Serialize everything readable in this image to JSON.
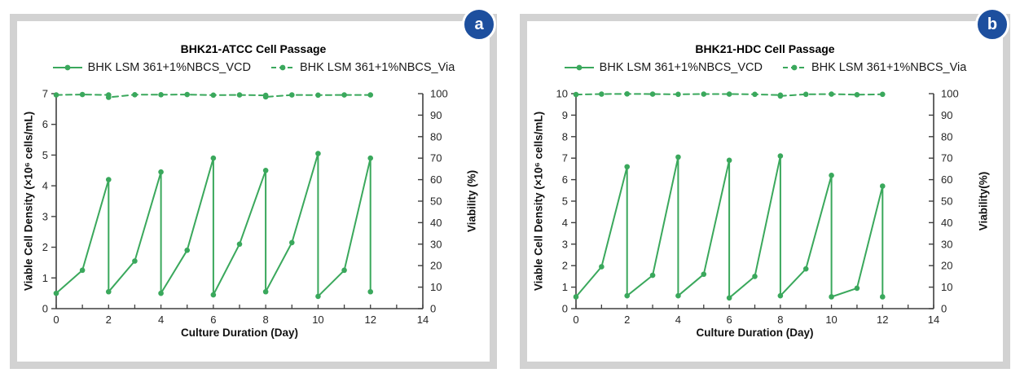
{
  "panels": [
    {
      "badge": "a",
      "badge_color": "#1d4f9e"
    },
    {
      "badge": "b",
      "badge_color": "#1d4f9e"
    }
  ],
  "chart_data": [
    {
      "type": "line",
      "title": "BHK21-ATCC Cell Passage",
      "xlabel": "Culture Duration (Day)",
      "ylabel_left": "Viable Cell Density (×10⁶ cells/mL)",
      "ylabel_right": "Viability (%)",
      "xlim": [
        0,
        14
      ],
      "x_major_ticks": [
        0,
        2,
        4,
        6,
        8,
        10,
        12,
        14
      ],
      "x_minor_step": 1,
      "ylim_left": [
        0,
        7
      ],
      "y_left_ticks": [
        0,
        1,
        2,
        3,
        4,
        5,
        6,
        7
      ],
      "ylim_right": [
        0,
        100
      ],
      "y_right_ticks": [
        0,
        10,
        20,
        30,
        40,
        50,
        60,
        70,
        80,
        90,
        100
      ],
      "grid": false,
      "legend_position": "top",
      "line_color": "#3aa85c",
      "axis_color": "#3f3f3f",
      "series": [
        {
          "name": "BHK LSM 361+1%NBCS_VCD",
          "axis": "left",
          "style": "solid",
          "points": [
            [
              0,
              0.5
            ],
            [
              1,
              1.25
            ],
            [
              2,
              4.2
            ],
            [
              2,
              0.55
            ],
            [
              3,
              1.55
            ],
            [
              4,
              4.45
            ],
            [
              4,
              0.5
            ],
            [
              5,
              1.9
            ],
            [
              6,
              4.9
            ],
            [
              6,
              0.45
            ],
            [
              7,
              2.1
            ],
            [
              8,
              4.5
            ],
            [
              8,
              0.55
            ],
            [
              9,
              2.15
            ],
            [
              10,
              5.05
            ],
            [
              10,
              0.4
            ],
            [
              11,
              1.25
            ],
            [
              12,
              4.9
            ],
            [
              12,
              0.55
            ]
          ]
        },
        {
          "name": "BHK LSM 361+1%NBCS_Via",
          "axis": "right",
          "style": "dashed",
          "points": [
            [
              0,
              99.4
            ],
            [
              1,
              99.6
            ],
            [
              2,
              99.4
            ],
            [
              2,
              98.3
            ],
            [
              3,
              99.5
            ],
            [
              4,
              99.5
            ],
            [
              5,
              99.6
            ],
            [
              6,
              99.3
            ],
            [
              7,
              99.4
            ],
            [
              8,
              99.2
            ],
            [
              8,
              98.5
            ],
            [
              9,
              99.4
            ],
            [
              10,
              99.3
            ],
            [
              11,
              99.4
            ],
            [
              12,
              99.4
            ]
          ]
        }
      ]
    },
    {
      "type": "line",
      "title": "BHK21-HDC Cell Passage",
      "xlabel": "Culture Duration (Day)",
      "ylabel_left": "Viable Cell Density (×10⁶ cells/mL)",
      "ylabel_right": "Viability(%)",
      "xlim": [
        0,
        14
      ],
      "x_major_ticks": [
        0,
        2,
        4,
        6,
        8,
        10,
        12,
        14
      ],
      "x_minor_step": 1,
      "ylim_left": [
        0,
        10
      ],
      "y_left_ticks": [
        0,
        1,
        2,
        3,
        4,
        5,
        6,
        7,
        8,
        9,
        10
      ],
      "ylim_right": [
        0,
        100
      ],
      "y_right_ticks": [
        0,
        10,
        20,
        30,
        40,
        50,
        60,
        70,
        80,
        90,
        100
      ],
      "grid": false,
      "legend_position": "top",
      "line_color": "#3aa85c",
      "axis_color": "#3f3f3f",
      "series": [
        {
          "name": "BHK LSM 361+1%NBCS_VCD",
          "axis": "left",
          "style": "solid",
          "points": [
            [
              0,
              0.55
            ],
            [
              1,
              1.95
            ],
            [
              2,
              6.6
            ],
            [
              2,
              0.6
            ],
            [
              3,
              1.55
            ],
            [
              4,
              7.05
            ],
            [
              4,
              0.6
            ],
            [
              5,
              1.6
            ],
            [
              6,
              6.9
            ],
            [
              6,
              0.5
            ],
            [
              7,
              1.5
            ],
            [
              8,
              7.1
            ],
            [
              8,
              0.6
            ],
            [
              9,
              1.85
            ],
            [
              10,
              6.2
            ],
            [
              10,
              0.55
            ],
            [
              11,
              0.95
            ],
            [
              12,
              5.7
            ],
            [
              12,
              0.55
            ]
          ]
        },
        {
          "name": "BHK LSM 361+1%NBCS_Via",
          "axis": "right",
          "style": "dashed",
          "points": [
            [
              0,
              99.6
            ],
            [
              1,
              99.8
            ],
            [
              2,
              99.9
            ],
            [
              3,
              99.8
            ],
            [
              4,
              99.7
            ],
            [
              5,
              99.8
            ],
            [
              6,
              99.8
            ],
            [
              7,
              99.7
            ],
            [
              8,
              99.3
            ],
            [
              8,
              98.9
            ],
            [
              9,
              99.7
            ],
            [
              10,
              99.8
            ],
            [
              11,
              99.5
            ],
            [
              12,
              99.7
            ]
          ]
        }
      ]
    }
  ]
}
